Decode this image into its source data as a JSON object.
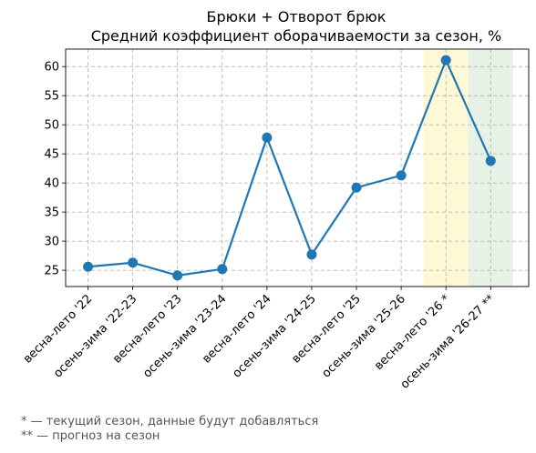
{
  "chart_data": {
    "type": "line",
    "title": "Брюки + Отворот брюк",
    "subtitle": "Средний коэффициент оборачиваемости за сезон, %",
    "xlabel": "",
    "ylabel": "",
    "categories": [
      "весна-лето '22",
      "осень-зима '22-23",
      "весна-лето '23",
      "осень-зима '23-24",
      "весна-лето '24",
      "осень-зима '24-25",
      "весна-лето '25",
      "осень-зима '25-26",
      "весна-лето '26 *",
      "осень-зима '26-27 **"
    ],
    "series": [
      {
        "values": [
          25.6,
          26.3,
          24.1,
          25.2,
          47.8,
          27.7,
          39.2,
          41.3,
          61.1,
          43.8
        ],
        "color": "#1f77b4"
      }
    ],
    "ylim": [
      22.2,
      63.0
    ],
    "yticks": [
      25,
      30,
      35,
      40,
      45,
      50,
      55,
      60
    ],
    "grid": true,
    "highlights": [
      {
        "category": "весна-лето '26 *",
        "color": "#fff3b0",
        "meaning": "current"
      },
      {
        "category": "осень-зима '26-27 **",
        "color": "#cfe8cf",
        "meaning": "forecast"
      }
    ]
  },
  "footnotes": {
    "current": "* — текущий сезон, данные будут добавляться",
    "forecast": "** — прогноз на сезон"
  }
}
